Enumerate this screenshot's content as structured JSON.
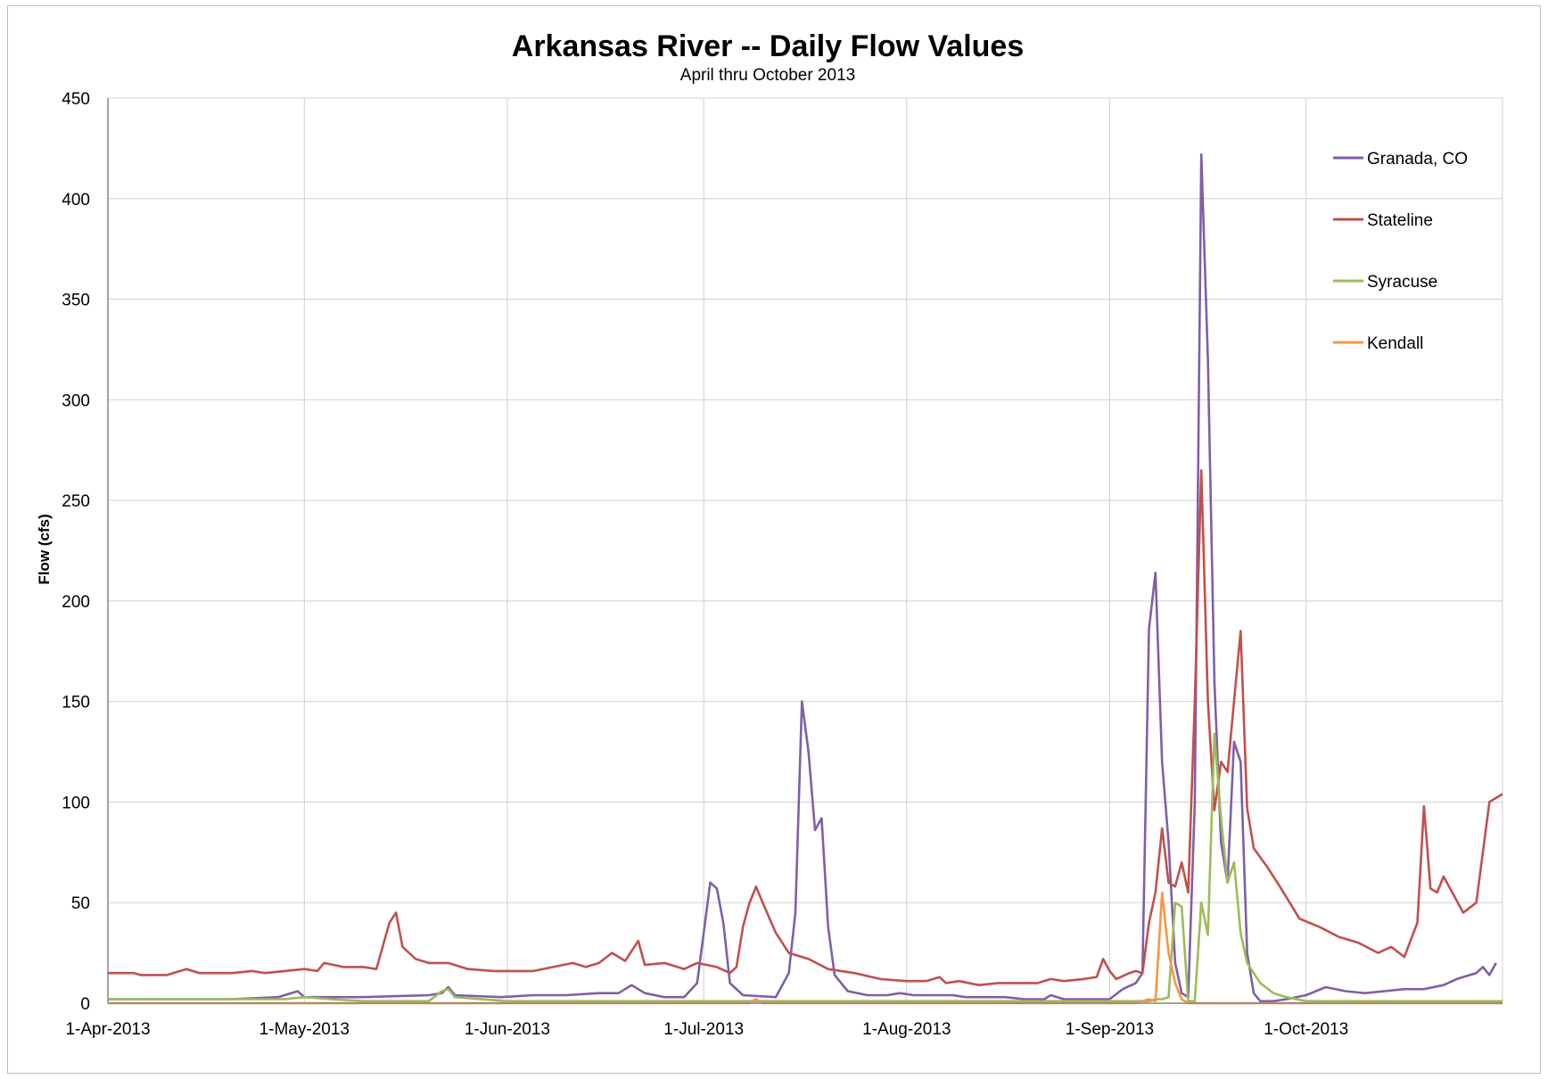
{
  "chart_data": {
    "type": "line",
    "title": "Arkansas River -- Daily Flow Values",
    "subtitle": "April thru October 2013",
    "xlabel": "",
    "ylabel": "Flow (cfs)",
    "ylim": [
      0,
      450
    ],
    "yticks": [
      0,
      50,
      100,
      150,
      200,
      250,
      300,
      350,
      400,
      450
    ],
    "xlim": [
      "2013-04-01",
      "2013-10-31"
    ],
    "xticks": [
      {
        "date": "2013-04-01",
        "label": "1-Apr-2013"
      },
      {
        "date": "2013-05-01",
        "label": "1-May-2013"
      },
      {
        "date": "2013-06-01",
        "label": "1-Jun-2013"
      },
      {
        "date": "2013-07-01",
        "label": "1-Jul-2013"
      },
      {
        "date": "2013-08-01",
        "label": "1-Aug-2013"
      },
      {
        "date": "2013-09-01",
        "label": "1-Sep-2013"
      },
      {
        "date": "2013-10-01",
        "label": "1-Oct-2013"
      }
    ],
    "grid": true,
    "legend_position": "top-right",
    "series": [
      {
        "name": "Granada, CO",
        "color": "#7f5fa8",
        "points": [
          [
            "2013-04-01",
            2
          ],
          [
            "2013-04-10",
            2
          ],
          [
            "2013-04-20",
            2
          ],
          [
            "2013-04-27",
            3
          ],
          [
            "2013-04-30",
            6
          ],
          [
            "2013-05-01",
            3
          ],
          [
            "2013-05-10",
            3
          ],
          [
            "2013-05-20",
            4
          ],
          [
            "2013-05-22",
            5
          ],
          [
            "2013-05-23",
            8
          ],
          [
            "2013-05-24",
            4
          ],
          [
            "2013-05-31",
            3
          ],
          [
            "2013-06-05",
            4
          ],
          [
            "2013-06-10",
            4
          ],
          [
            "2013-06-15",
            5
          ],
          [
            "2013-06-18",
            5
          ],
          [
            "2013-06-20",
            9
          ],
          [
            "2013-06-22",
            5
          ],
          [
            "2013-06-25",
            3
          ],
          [
            "2013-06-28",
            3
          ],
          [
            "2013-06-30",
            10
          ],
          [
            "2013-07-01",
            35
          ],
          [
            "2013-07-02",
            60
          ],
          [
            "2013-07-03",
            57
          ],
          [
            "2013-07-04",
            40
          ],
          [
            "2013-07-05",
            10
          ],
          [
            "2013-07-07",
            4
          ],
          [
            "2013-07-12",
            3
          ],
          [
            "2013-07-14",
            15
          ],
          [
            "2013-07-15",
            45
          ],
          [
            "2013-07-16",
            150
          ],
          [
            "2013-07-17",
            125
          ],
          [
            "2013-07-18",
            86
          ],
          [
            "2013-07-19",
            92
          ],
          [
            "2013-07-20",
            38
          ],
          [
            "2013-07-21",
            14
          ],
          [
            "2013-07-23",
            6
          ],
          [
            "2013-07-26",
            4
          ],
          [
            "2013-07-29",
            4
          ],
          [
            "2013-07-31",
            5
          ],
          [
            "2013-08-02",
            4
          ],
          [
            "2013-08-05",
            4
          ],
          [
            "2013-08-08",
            4
          ],
          [
            "2013-08-10",
            3
          ],
          [
            "2013-08-13",
            3
          ],
          [
            "2013-08-16",
            3
          ],
          [
            "2013-08-19",
            2
          ],
          [
            "2013-08-22",
            2
          ],
          [
            "2013-08-23",
            4
          ],
          [
            "2013-08-25",
            2
          ],
          [
            "2013-08-29",
            2
          ],
          [
            "2013-09-01",
            2
          ],
          [
            "2013-09-03",
            7
          ],
          [
            "2013-09-05",
            10
          ],
          [
            "2013-09-06",
            15
          ],
          [
            "2013-09-07",
            186
          ],
          [
            "2013-09-08",
            214
          ],
          [
            "2013-09-09",
            120
          ],
          [
            "2013-09-10",
            80
          ],
          [
            "2013-09-11",
            20
          ],
          [
            "2013-09-12",
            5
          ],
          [
            "2013-09-13",
            3
          ],
          [
            "2013-09-14",
            100
          ],
          [
            "2013-09-15",
            422
          ],
          [
            "2013-09-16",
            320
          ],
          [
            "2013-09-17",
            160
          ],
          [
            "2013-09-18",
            80
          ],
          [
            "2013-09-19",
            60
          ],
          [
            "2013-09-20",
            130
          ],
          [
            "2013-09-21",
            120
          ],
          [
            "2013-09-22",
            25
          ],
          [
            "2013-09-23",
            5
          ],
          [
            "2013-09-24",
            1
          ],
          [
            "2013-09-26",
            1
          ],
          [
            "2013-09-28",
            2
          ],
          [
            "2013-10-01",
            4
          ],
          [
            "2013-10-04",
            8
          ],
          [
            "2013-10-07",
            6
          ],
          [
            "2013-10-10",
            5
          ],
          [
            "2013-10-13",
            6
          ],
          [
            "2013-10-16",
            7
          ],
          [
            "2013-10-19",
            7
          ],
          [
            "2013-10-22",
            9
          ],
          [
            "2013-10-24",
            12
          ],
          [
            "2013-10-27",
            15
          ],
          [
            "2013-10-28",
            18
          ],
          [
            "2013-10-29",
            14
          ],
          [
            "2013-10-30",
            20
          ]
        ]
      },
      {
        "name": "Stateline",
        "color": "#c0504d",
        "points": [
          [
            "2013-04-01",
            15
          ],
          [
            "2013-04-05",
            15
          ],
          [
            "2013-04-06",
            14
          ],
          [
            "2013-04-10",
            14
          ],
          [
            "2013-04-13",
            17
          ],
          [
            "2013-04-15",
            15
          ],
          [
            "2013-04-20",
            15
          ],
          [
            "2013-04-23",
            16
          ],
          [
            "2013-04-25",
            15
          ],
          [
            "2013-04-28",
            16
          ],
          [
            "2013-05-01",
            17
          ],
          [
            "2013-05-03",
            16
          ],
          [
            "2013-05-04",
            20
          ],
          [
            "2013-05-07",
            18
          ],
          [
            "2013-05-10",
            18
          ],
          [
            "2013-05-12",
            17
          ],
          [
            "2013-05-14",
            40
          ],
          [
            "2013-05-15",
            45
          ],
          [
            "2013-05-16",
            28
          ],
          [
            "2013-05-18",
            22
          ],
          [
            "2013-05-20",
            20
          ],
          [
            "2013-05-23",
            20
          ],
          [
            "2013-05-26",
            17
          ],
          [
            "2013-05-30",
            16
          ],
          [
            "2013-06-02",
            16
          ],
          [
            "2013-06-05",
            16
          ],
          [
            "2013-06-08",
            18
          ],
          [
            "2013-06-11",
            20
          ],
          [
            "2013-06-13",
            18
          ],
          [
            "2013-06-15",
            20
          ],
          [
            "2013-06-17",
            25
          ],
          [
            "2013-06-19",
            21
          ],
          [
            "2013-06-21",
            31
          ],
          [
            "2013-06-22",
            19
          ],
          [
            "2013-06-25",
            20
          ],
          [
            "2013-06-28",
            17
          ],
          [
            "2013-06-30",
            20
          ],
          [
            "2013-07-03",
            18
          ],
          [
            "2013-07-05",
            15
          ],
          [
            "2013-07-06",
            18
          ],
          [
            "2013-07-07",
            38
          ],
          [
            "2013-07-08",
            50
          ],
          [
            "2013-07-09",
            58
          ],
          [
            "2013-07-10",
            50
          ],
          [
            "2013-07-12",
            35
          ],
          [
            "2013-07-14",
            25
          ],
          [
            "2013-07-17",
            22
          ],
          [
            "2013-07-20",
            17
          ],
          [
            "2013-07-24",
            15
          ],
          [
            "2013-07-28",
            12
          ],
          [
            "2013-08-01",
            11
          ],
          [
            "2013-08-04",
            11
          ],
          [
            "2013-08-06",
            13
          ],
          [
            "2013-08-07",
            10
          ],
          [
            "2013-08-09",
            11
          ],
          [
            "2013-08-12",
            9
          ],
          [
            "2013-08-15",
            10
          ],
          [
            "2013-08-18",
            10
          ],
          [
            "2013-08-21",
            10
          ],
          [
            "2013-08-23",
            12
          ],
          [
            "2013-08-25",
            11
          ],
          [
            "2013-08-28",
            12
          ],
          [
            "2013-08-30",
            13
          ],
          [
            "2013-08-31",
            22
          ],
          [
            "2013-09-01",
            16
          ],
          [
            "2013-09-02",
            12
          ],
          [
            "2013-09-04",
            15
          ],
          [
            "2013-09-05",
            16
          ],
          [
            "2013-09-06",
            15
          ],
          [
            "2013-09-07",
            40
          ],
          [
            "2013-09-08",
            55
          ],
          [
            "2013-09-09",
            87
          ],
          [
            "2013-09-10",
            60
          ],
          [
            "2013-09-11",
            58
          ],
          [
            "2013-09-12",
            70
          ],
          [
            "2013-09-13",
            55
          ],
          [
            "2013-09-14",
            150
          ],
          [
            "2013-09-15",
            265
          ],
          [
            "2013-09-16",
            150
          ],
          [
            "2013-09-17",
            96
          ],
          [
            "2013-09-18",
            120
          ],
          [
            "2013-09-19",
            115
          ],
          [
            "2013-09-20",
            150
          ],
          [
            "2013-09-21",
            185
          ],
          [
            "2013-09-22",
            97
          ],
          [
            "2013-09-23",
            77
          ],
          [
            "2013-09-25",
            68
          ],
          [
            "2013-09-27",
            58
          ],
          [
            "2013-09-30",
            42
          ],
          [
            "2013-10-03",
            38
          ],
          [
            "2013-10-06",
            33
          ],
          [
            "2013-10-09",
            30
          ],
          [
            "2013-10-12",
            25
          ],
          [
            "2013-10-14",
            28
          ],
          [
            "2013-10-16",
            23
          ],
          [
            "2013-10-18",
            40
          ],
          [
            "2013-10-19",
            98
          ],
          [
            "2013-10-20",
            57
          ],
          [
            "2013-10-21",
            55
          ],
          [
            "2013-10-22",
            63
          ],
          [
            "2013-10-25",
            45
          ],
          [
            "2013-10-27",
            50
          ],
          [
            "2013-10-29",
            100
          ],
          [
            "2013-10-31",
            104
          ]
        ]
      },
      {
        "name": "Syracuse",
        "color": "#9bbb59",
        "points": [
          [
            "2013-04-01",
            2
          ],
          [
            "2013-04-28",
            2
          ],
          [
            "2013-05-01",
            3
          ],
          [
            "2013-05-05",
            2
          ],
          [
            "2013-05-10",
            1
          ],
          [
            "2013-05-20",
            1
          ],
          [
            "2013-05-22",
            6
          ],
          [
            "2013-05-23",
            7
          ],
          [
            "2013-05-24",
            3
          ],
          [
            "2013-06-01",
            1
          ],
          [
            "2013-07-01",
            1
          ],
          [
            "2013-08-01",
            1
          ],
          [
            "2013-09-01",
            1
          ],
          [
            "2013-09-06",
            1
          ],
          [
            "2013-09-07",
            1
          ],
          [
            "2013-09-08",
            2
          ],
          [
            "2013-09-09",
            2
          ],
          [
            "2013-09-10",
            3
          ],
          [
            "2013-09-11",
            50
          ],
          [
            "2013-09-12",
            48
          ],
          [
            "2013-09-13",
            1
          ],
          [
            "2013-09-14",
            1
          ],
          [
            "2013-09-15",
            50
          ],
          [
            "2013-09-16",
            34
          ],
          [
            "2013-09-17",
            134
          ],
          [
            "2013-09-18",
            92
          ],
          [
            "2013-09-19",
            60
          ],
          [
            "2013-09-20",
            70
          ],
          [
            "2013-09-21",
            35
          ],
          [
            "2013-09-22",
            20
          ],
          [
            "2013-09-24",
            10
          ],
          [
            "2013-09-26",
            5
          ],
          [
            "2013-09-28",
            3
          ],
          [
            "2013-10-01",
            1
          ],
          [
            "2013-10-31",
            1
          ]
        ]
      },
      {
        "name": "Kendall",
        "color": "#f79646",
        "points": [
          [
            "2013-04-01",
            0
          ],
          [
            "2013-07-08",
            0
          ],
          [
            "2013-07-09",
            2
          ],
          [
            "2013-07-10",
            0
          ],
          [
            "2013-09-05",
            0
          ],
          [
            "2013-09-07",
            2
          ],
          [
            "2013-09-08",
            1
          ],
          [
            "2013-09-09",
            55
          ],
          [
            "2013-09-10",
            25
          ],
          [
            "2013-09-11",
            10
          ],
          [
            "2013-09-12",
            2
          ],
          [
            "2013-09-13",
            0
          ],
          [
            "2013-10-31",
            0
          ]
        ]
      }
    ]
  }
}
